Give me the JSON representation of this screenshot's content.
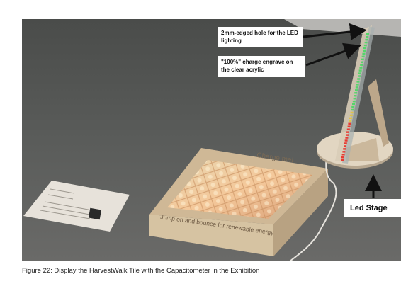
{
  "figure": {
    "callouts": {
      "hole": "2mm-edged hole for the LED lighting",
      "engrave": "\"100%\" charge engrave on the clear acrylic",
      "stage": "Led Stage"
    },
    "tile": {
      "top_text": "Charge me!",
      "front_text": "Jump on and bounce for renewable energy"
    },
    "caption": "Figure 22: Display the HarvestWalk Tile with the Capacitometer in the Exhibition"
  }
}
